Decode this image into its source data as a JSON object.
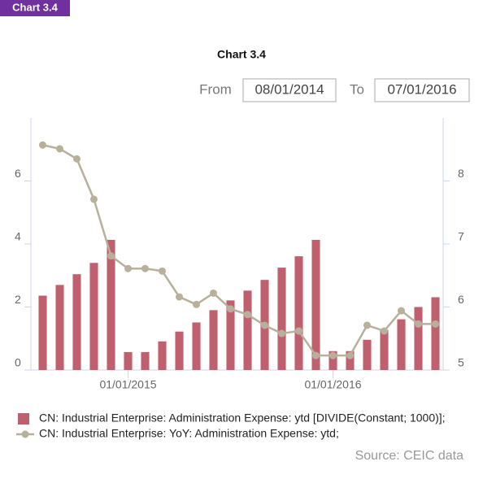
{
  "badge": "Chart 3.4",
  "controls": {
    "from_label": "From",
    "from_value": "08/01/2014",
    "to_label": "To",
    "to_value": "07/01/2016"
  },
  "source": "Source: CEIC data",
  "chart_data": {
    "type": "bar-line",
    "title": "Chart 3.4",
    "categories": [
      null,
      null,
      null,
      null,
      null,
      "01/01/2015",
      null,
      null,
      null,
      null,
      null,
      null,
      null,
      null,
      null,
      null,
      null,
      "01/01/2016",
      null,
      null,
      null,
      null,
      null,
      null
    ],
    "series": [
      {
        "name": "CN: Industrial Enterprise: Administration Expense: ytd [DIVIDE(Constant; 1000)];",
        "type": "bar",
        "color": "#c0606e",
        "values": [
          2.36,
          2.7,
          3.04,
          3.4,
          4.13,
          0.57,
          0.57,
          0.91,
          1.22,
          1.51,
          1.9,
          2.21,
          2.52,
          2.86,
          3.25,
          3.61,
          4.13,
          0.6,
          0.6,
          0.96,
          1.27,
          1.61,
          2.0,
          2.31
        ]
      },
      {
        "name": "CN: Industrial Enterprise: YoY: Administration Expense: ytd;",
        "type": "line",
        "axis": "y2",
        "color": "#b8b09a",
        "values": [
          8.57,
          8.51,
          8.35,
          7.71,
          6.81,
          6.61,
          6.61,
          6.57,
          6.16,
          6.04,
          6.22,
          5.97,
          5.88,
          5.71,
          5.58,
          5.62,
          5.23,
          5.23,
          5.23,
          5.71,
          5.62,
          5.94,
          5.73,
          5.73
        ]
      }
    ],
    "ylim": [
      0,
      8
    ],
    "yticks": [
      0,
      2,
      4,
      6
    ],
    "y2lim": [
      5,
      9
    ],
    "y2ticks": [
      5,
      6,
      7,
      8
    ]
  }
}
